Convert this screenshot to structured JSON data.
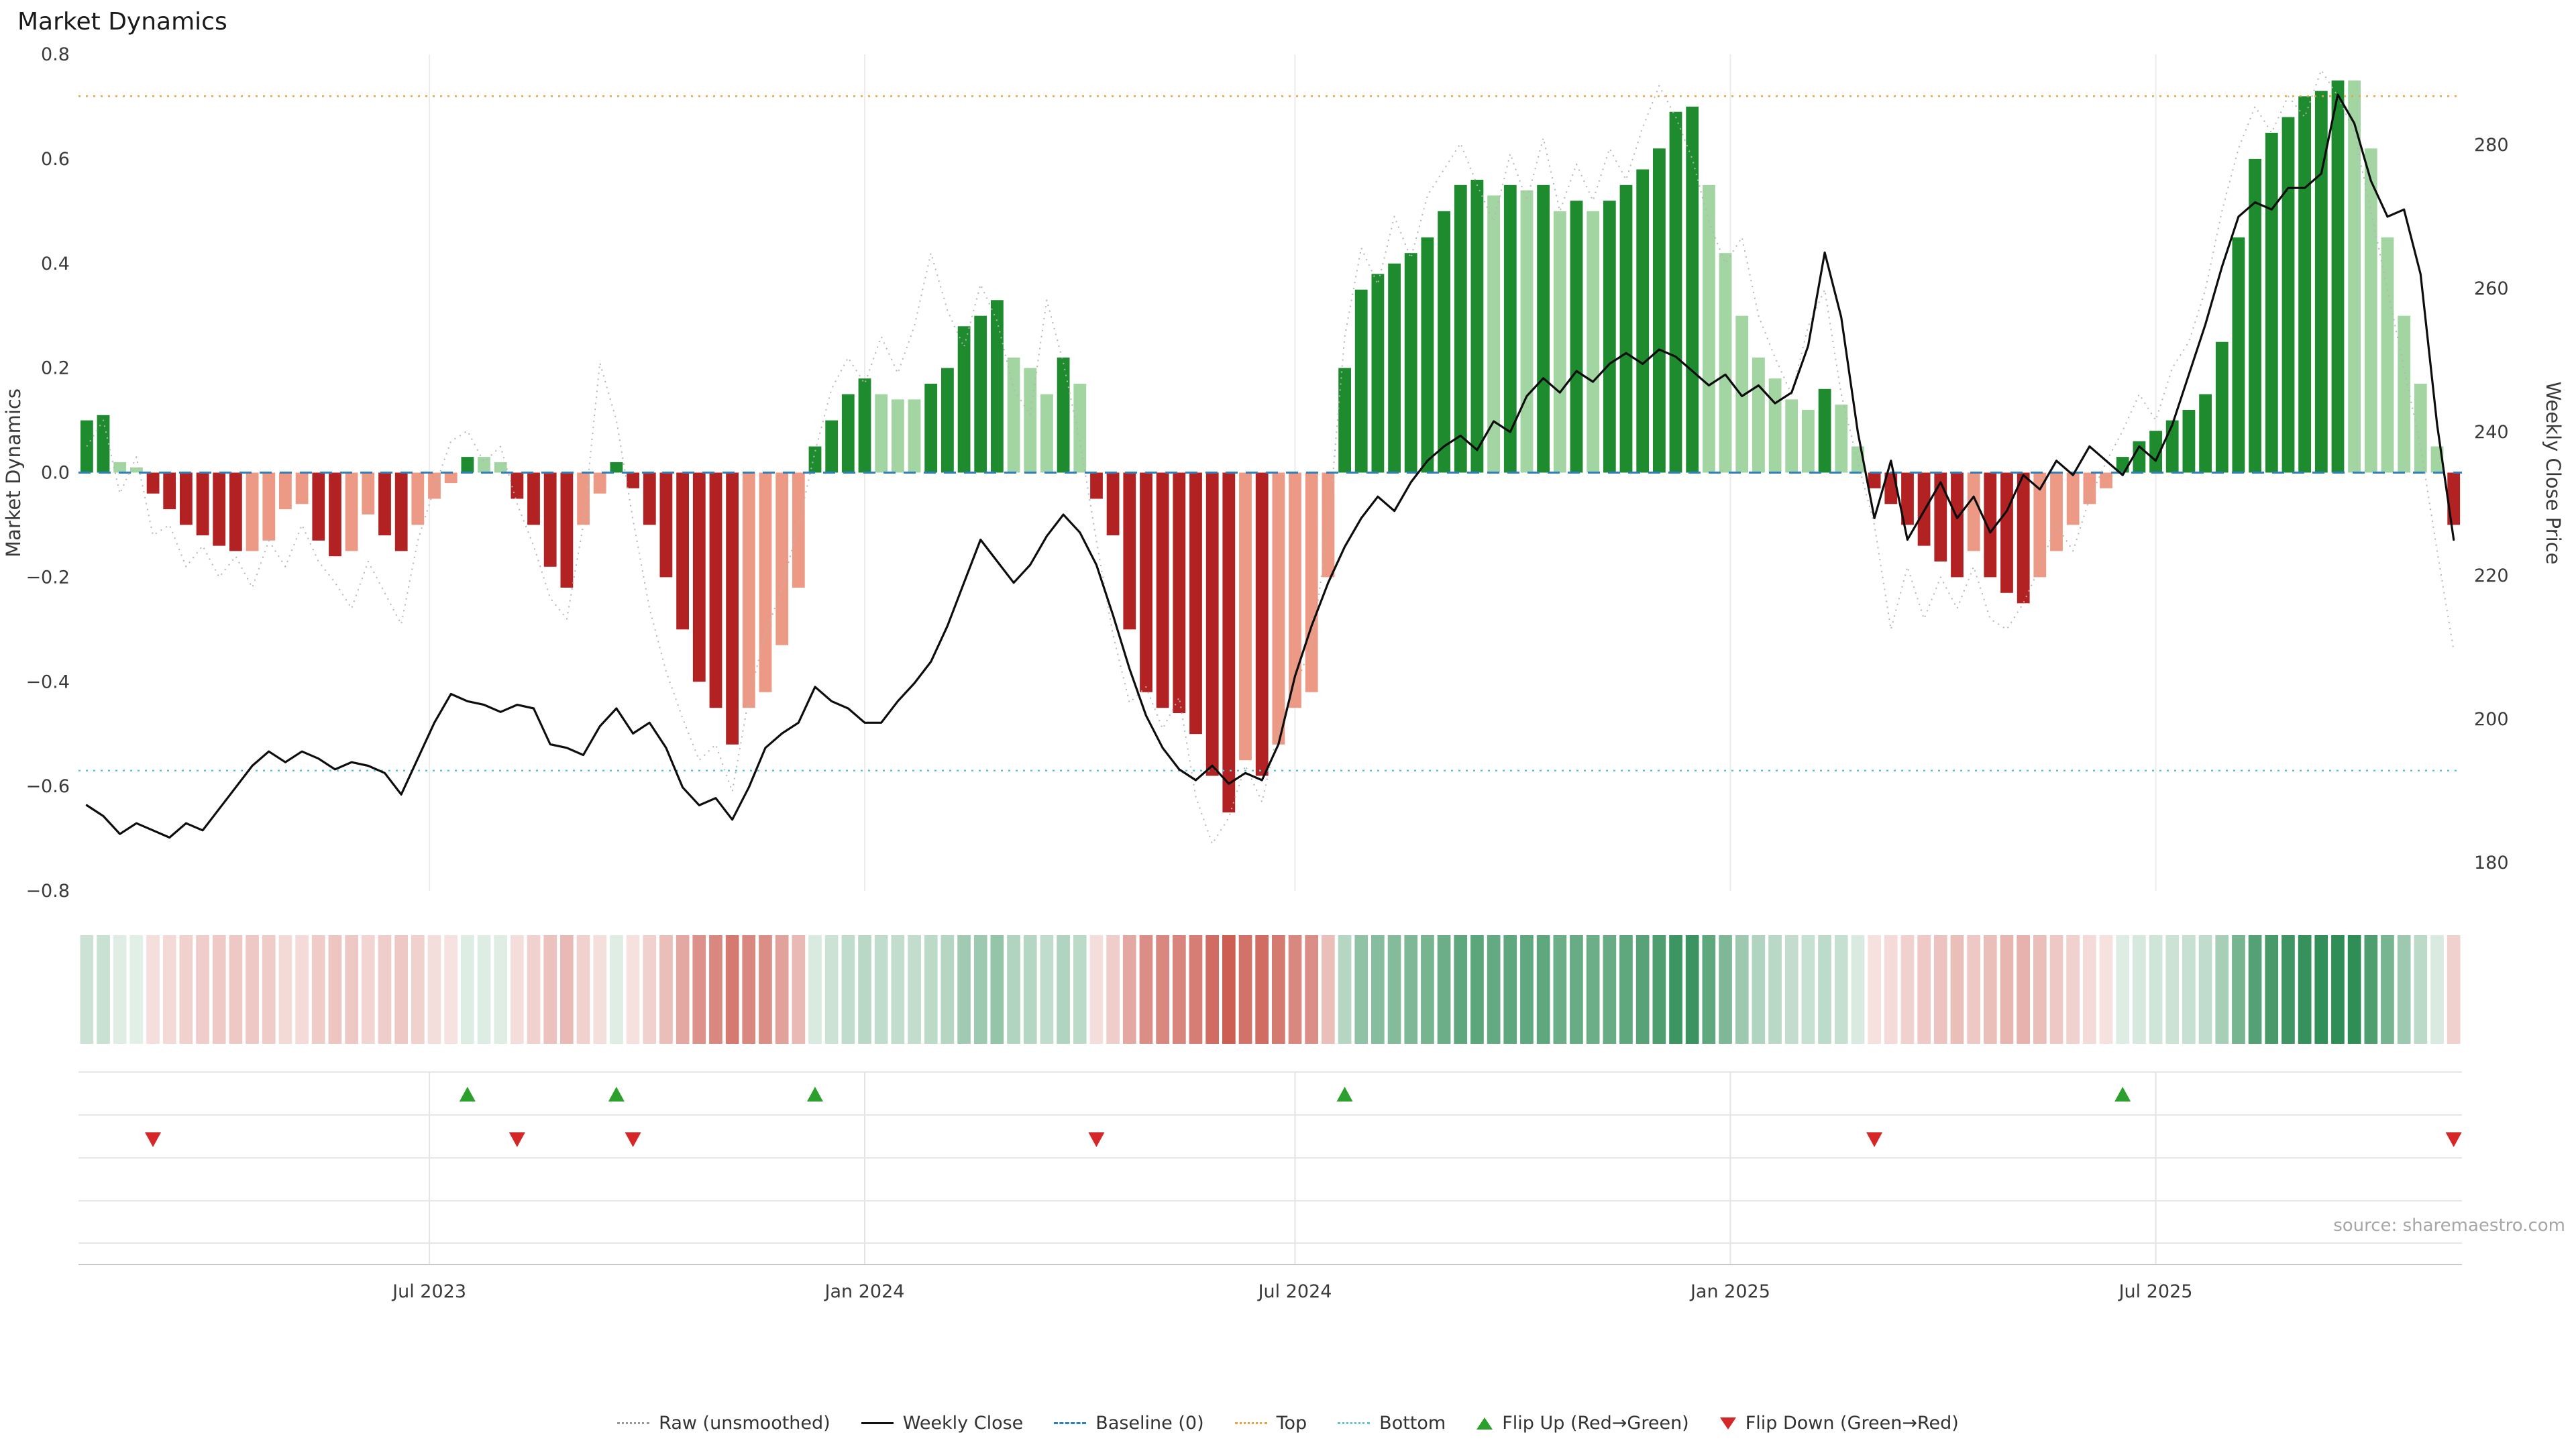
{
  "title": "Market Dynamics",
  "source": "source: sharemaestro.com",
  "left_axis": {
    "label": "Market Dynamics",
    "ticks": [
      {
        "label": "0.8",
        "value": 0.8
      },
      {
        "label": "0.6",
        "value": 0.6
      },
      {
        "label": "0.4",
        "value": 0.4
      },
      {
        "label": "0.2",
        "value": 0.2
      },
      {
        "label": "0.0",
        "value": 0.0
      },
      {
        "label": "−0.2",
        "value": -0.2
      },
      {
        "label": "−0.4",
        "value": -0.4
      },
      {
        "label": "−0.6",
        "value": -0.6
      },
      {
        "label": "−0.8",
        "value": -0.8
      }
    ]
  },
  "right_axis": {
    "label": "Weekly Close Price",
    "ticks": [
      {
        "label": "280",
        "value": 280
      },
      {
        "label": "260",
        "value": 260
      },
      {
        "label": "240",
        "value": 240
      },
      {
        "label": "220",
        "value": 220
      },
      {
        "label": "200",
        "value": 200
      },
      {
        "label": "180",
        "value": 180
      }
    ]
  },
  "x_axis": {
    "ticks": [
      {
        "label": "Jul 2023",
        "week": 20.7
      },
      {
        "label": "Jan 2024",
        "week": 47
      },
      {
        "label": "Jul 2024",
        "week": 73
      },
      {
        "label": "Jan 2025",
        "week": 99.3
      },
      {
        "label": "Jul 2025",
        "week": 125
      }
    ]
  },
  "legend": {
    "raw": "Raw (unsmoothed)",
    "close": "Weekly Close",
    "baseline": "Baseline (0)",
    "top": "Top",
    "bottom": "Bottom",
    "flip_up": "Flip Up (Red→Green)",
    "flip_down": "Flip Down (Green→Red)"
  },
  "colors": {
    "bar_green_strong": "#1e8b2e",
    "bar_green_light": "#a2d5a2",
    "bar_red_strong": "#b22222",
    "bar_red_light": "#ec9a85",
    "close_line": "#0d0d0d",
    "raw_line": "#b5b5b5",
    "baseline": "#2f7ec0",
    "top_line": "#e8a33d",
    "bottom_line": "#5fc4d8",
    "flip_up": "#2ca02c",
    "flip_down": "#d62728",
    "heat_green": "#1d8348",
    "heat_red": "#c0392b",
    "grid": "#ececec"
  },
  "chart_data": {
    "type": "bar+line",
    "title": "Market Dynamics",
    "ylabel_left": "Market Dynamics",
    "ylabel_right": "Weekly Close Price",
    "ylim_left": [
      -0.8,
      0.8
    ],
    "baseline": 0,
    "top_threshold": 0.72,
    "bottom_threshold": -0.57,
    "n_weeks": 144,
    "x_tick_weeks": [
      20.7,
      47,
      73,
      99.3,
      125
    ],
    "x_tick_labels": [
      "Jul 2023",
      "Jan 2024",
      "Jul 2024",
      "Jan 2025",
      "Jul 2025"
    ],
    "dynamics": [
      0.1,
      0.11,
      0.02,
      0.01,
      -0.04,
      -0.07,
      -0.1,
      -0.12,
      -0.14,
      -0.15,
      -0.15,
      -0.13,
      -0.07,
      -0.06,
      -0.13,
      -0.16,
      -0.15,
      -0.08,
      -0.12,
      -0.15,
      -0.1,
      -0.05,
      -0.02,
      0.03,
      0.03,
      0.02,
      -0.05,
      -0.1,
      -0.18,
      -0.22,
      -0.1,
      -0.04,
      0.02,
      -0.03,
      -0.1,
      -0.2,
      -0.3,
      -0.4,
      -0.45,
      -0.52,
      -0.45,
      -0.42,
      -0.33,
      -0.22,
      0.05,
      0.1,
      0.15,
      0.18,
      0.15,
      0.14,
      0.14,
      0.17,
      0.2,
      0.28,
      0.3,
      0.33,
      0.22,
      0.2,
      0.15,
      0.22,
      0.17,
      -0.05,
      -0.12,
      -0.3,
      -0.42,
      -0.45,
      -0.46,
      -0.5,
      -0.58,
      -0.65,
      -0.55,
      -0.58,
      -0.52,
      -0.45,
      -0.42,
      -0.2,
      0.2,
      0.35,
      0.38,
      0.4,
      0.42,
      0.45,
      0.5,
      0.55,
      0.56,
      0.53,
      0.55,
      0.54,
      0.55,
      0.5,
      0.52,
      0.5,
      0.52,
      0.55,
      0.58,
      0.62,
      0.69,
      0.7,
      0.55,
      0.42,
      0.3,
      0.22,
      0.18,
      0.14,
      0.12,
      0.16,
      0.13,
      0.05,
      -0.03,
      -0.06,
      -0.1,
      -0.14,
      -0.17,
      -0.2,
      -0.15,
      -0.2,
      -0.23,
      -0.25,
      -0.2,
      -0.15,
      -0.1,
      -0.06,
      -0.03,
      0.03,
      0.06,
      0.08,
      0.1,
      0.12,
      0.15,
      0.25,
      0.45,
      0.6,
      0.65,
      0.68,
      0.72,
      0.73,
      0.75,
      0.75,
      0.62,
      0.45,
      0.3,
      0.17,
      0.05,
      -0.1
    ],
    "close": [
      188,
      186.5,
      184,
      185.5,
      184.5,
      183.5,
      185.5,
      184.5,
      187.5,
      190.5,
      193.5,
      195.5,
      194,
      195.5,
      194.5,
      193,
      194,
      193.5,
      192.5,
      189.5,
      194.5,
      199.5,
      203.5,
      202.5,
      202,
      201,
      202,
      201.5,
      196.5,
      196,
      195,
      199,
      201.5,
      198,
      199.5,
      196,
      190.5,
      188,
      189,
      186,
      190.5,
      196,
      198,
      199.5,
      204.5,
      202.5,
      201.5,
      199.5,
      199.5,
      202.5,
      205,
      208,
      213,
      219,
      225,
      222,
      219,
      221.5,
      225.5,
      228.5,
      226,
      221.5,
      214.5,
      207,
      200.5,
      196,
      193,
      191.5,
      193.5,
      191,
      192.5,
      191.5,
      196.5,
      206,
      213,
      219,
      224,
      228,
      231,
      229,
      233,
      236,
      238,
      239.5,
      237.5,
      241.5,
      240,
      245,
      247.5,
      245.5,
      248.5,
      247,
      249.5,
      251,
      249.5,
      251.5,
      250.5,
      248.5,
      246.5,
      248,
      245,
      246.5,
      244,
      245.5,
      252,
      265,
      256,
      240,
      228,
      236,
      225,
      229,
      233,
      228,
      231,
      226,
      229,
      234,
      232,
      236,
      234,
      238,
      236,
      234,
      238,
      236,
      241,
      248,
      255,
      263,
      270,
      272,
      271,
      274,
      274,
      276,
      287,
      283,
      275,
      270,
      271,
      262,
      241,
      225
    ],
    "raw": [
      0.05,
      0.1,
      -0.04,
      0.03,
      -0.12,
      -0.1,
      -0.18,
      -0.14,
      -0.2,
      -0.16,
      -0.22,
      -0.13,
      -0.18,
      -0.1,
      -0.17,
      -0.21,
      -0.26,
      -0.17,
      -0.23,
      -0.29,
      -0.13,
      -0.03,
      0.06,
      0.08,
      0.02,
      0.05,
      -0.06,
      -0.14,
      -0.24,
      -0.28,
      -0.1,
      0.21,
      0.1,
      -0.09,
      -0.26,
      -0.38,
      -0.47,
      -0.55,
      -0.52,
      -0.61,
      -0.43,
      -0.31,
      -0.22,
      -0.1,
      0.04,
      0.16,
      0.22,
      0.17,
      0.26,
      0.19,
      0.28,
      0.42,
      0.31,
      0.24,
      0.36,
      0.29,
      0.16,
      0.11,
      0.33,
      0.21,
      0.06,
      -0.13,
      -0.31,
      -0.44,
      -0.41,
      -0.49,
      -0.43,
      -0.62,
      -0.71,
      -0.66,
      -0.56,
      -0.63,
      -0.49,
      -0.41,
      -0.33,
      -0.11,
      0.26,
      0.43,
      0.36,
      0.49,
      0.41,
      0.53,
      0.58,
      0.63,
      0.55,
      0.48,
      0.61,
      0.52,
      0.64,
      0.5,
      0.59,
      0.52,
      0.62,
      0.56,
      0.66,
      0.74,
      0.68,
      0.6,
      0.48,
      0.4,
      0.45,
      0.3,
      0.22,
      0.15,
      0.28,
      0.35,
      0.15,
      0.02,
      -0.1,
      -0.3,
      -0.18,
      -0.28,
      -0.2,
      -0.26,
      -0.18,
      -0.28,
      -0.3,
      -0.25,
      -0.18,
      -0.1,
      -0.15,
      -0.05,
      0.02,
      0.08,
      0.15,
      0.1,
      0.2,
      0.25,
      0.35,
      0.5,
      0.62,
      0.7,
      0.65,
      0.72,
      0.68,
      0.77,
      0.72,
      0.65,
      0.5,
      0.35,
      0.2,
      0.05,
      -0.15,
      -0.34
    ],
    "flip_up_weeks": [
      23,
      32,
      44,
      76,
      123
    ],
    "flip_down_weeks": [
      4,
      26,
      33,
      61,
      108,
      143
    ]
  }
}
